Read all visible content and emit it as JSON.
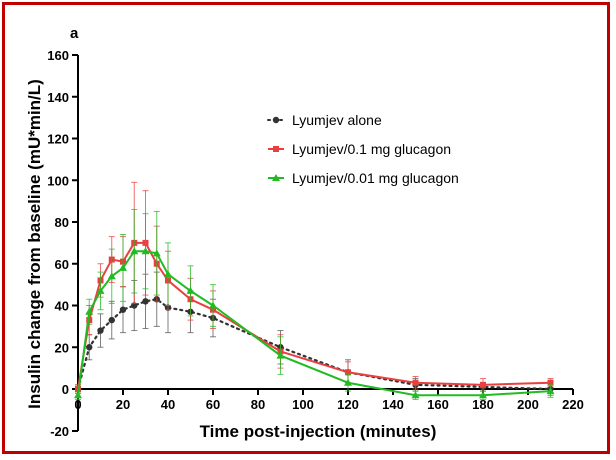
{
  "chart_data": {
    "type": "line",
    "panel_label": "a",
    "xlabel": "Time post-injection (minutes)",
    "ylabel": "Insulin change from baseline (mU*min/L)",
    "xlim": [
      0,
      220
    ],
    "ylim": [
      -20,
      160
    ],
    "xticks": [
      0,
      20,
      40,
      60,
      80,
      100,
      120,
      140,
      160,
      180,
      200,
      220
    ],
    "yticks": [
      -20,
      0,
      20,
      40,
      60,
      80,
      100,
      120,
      140,
      160
    ],
    "legend_position": "upper-right",
    "error_bars": true,
    "series": [
      {
        "name": "Lyumjev alone",
        "color": "#333333",
        "style": "dotted",
        "marker": "circle",
        "x": [
          0,
          5,
          10,
          15,
          20,
          25,
          30,
          35,
          40,
          50,
          60,
          90,
          120,
          150,
          180,
          210
        ],
        "y": [
          0,
          20,
          28,
          33,
          38,
          40,
          42,
          43,
          39,
          37,
          34,
          20,
          8,
          2,
          1,
          0
        ],
        "err": [
          2,
          6,
          8,
          9,
          11,
          12,
          13,
          13,
          12,
          10,
          9,
          8,
          6,
          3,
          2,
          3
        ]
      },
      {
        "name": "Lyumjev/0.1 mg glucagon",
        "color": "#e8403f",
        "style": "solid",
        "marker": "square",
        "x": [
          0,
          5,
          10,
          15,
          20,
          25,
          30,
          35,
          40,
          50,
          60,
          90,
          120,
          150,
          180,
          210
        ],
        "y": [
          0,
          33,
          52,
          62,
          61,
          70,
          70,
          60,
          52,
          43,
          38,
          18,
          8,
          3,
          2,
          3
        ],
        "err": [
          2,
          7,
          8,
          11,
          12,
          29,
          25,
          18,
          14,
          10,
          9,
          8,
          5,
          3,
          3,
          2
        ]
      },
      {
        "name": "Lyumjev/0.01 mg glucagon",
        "color": "#22bb22",
        "style": "solid",
        "marker": "triangle",
        "x": [
          0,
          5,
          10,
          15,
          20,
          25,
          30,
          35,
          40,
          50,
          60,
          90,
          120,
          150,
          180,
          210
        ],
        "y": [
          -3,
          37,
          47,
          54,
          58,
          66,
          66,
          65,
          55,
          47,
          40,
          16,
          3,
          -3,
          -3,
          -1
        ],
        "err": [
          2,
          6,
          9,
          13,
          16,
          20,
          18,
          20,
          15,
          12,
          10,
          9,
          4,
          2,
          2,
          3
        ]
      }
    ]
  }
}
